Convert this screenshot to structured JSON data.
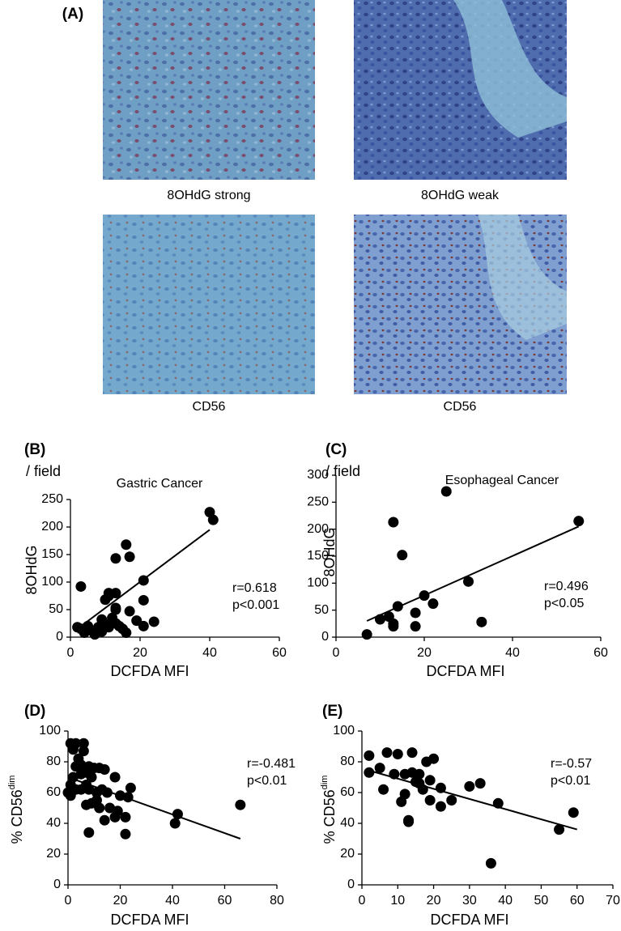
{
  "micrographs": {
    "panel_label": "(A)",
    "captions": [
      "8OHdG strong",
      "8OHdG weak",
      "CD56",
      "CD56"
    ]
  },
  "chart_data": [
    {
      "type": "scatter",
      "panel_label": "(B)",
      "title": "Gastric Cancer",
      "xlabel": "DCFDA MFI",
      "ylabel": "8OHdG",
      "ylabel_unit": "/ field",
      "annotations": [
        "r=0.618",
        "p<0.001"
      ],
      "xlim": [
        0,
        60
      ],
      "xticks": [
        0,
        20,
        40,
        60
      ],
      "ylim": [
        0,
        250
      ],
      "yticks": [
        0,
        50,
        100,
        150,
        200,
        250
      ],
      "color": "#000000",
      "x": [
        40,
        41,
        21,
        16,
        17,
        13,
        3,
        11,
        13,
        10,
        11,
        21,
        13,
        13,
        17,
        19,
        21,
        24,
        15,
        16,
        13,
        9,
        10,
        11,
        8,
        6,
        7,
        4,
        3,
        2,
        5,
        9,
        12,
        14
      ],
      "y": [
        227,
        213,
        103,
        168,
        146,
        143,
        92,
        80,
        80,
        68,
        75,
        67,
        53,
        50,
        47,
        30,
        20,
        28,
        15,
        8,
        25,
        32,
        23,
        18,
        18,
        12,
        5,
        8,
        15,
        18,
        20,
        10,
        35,
        20
      ],
      "fit": {
        "x": [
          2,
          40
        ],
        "y": [
          15,
          195
        ]
      }
    },
    {
      "type": "scatter",
      "panel_label": "(C)",
      "title": "Esophageal Cancer",
      "xlabel": "DCFDA MFI",
      "ylabel": "8OHdG",
      "ylabel_unit": "/ field",
      "annotations": [
        "r=0.496",
        "p<0.05"
      ],
      "xlim": [
        0,
        60
      ],
      "xticks": [
        0,
        20,
        40,
        60
      ],
      "ylim": [
        0,
        300
      ],
      "yticks": [
        0,
        50,
        100,
        150,
        200,
        250,
        300
      ],
      "color": "#000000",
      "x": [
        25,
        13,
        15,
        55,
        30,
        20,
        22,
        18,
        33,
        14,
        12,
        10,
        13,
        13,
        18,
        7
      ],
      "y": [
        270,
        213,
        152,
        215,
        103,
        77,
        62,
        45,
        28,
        57,
        38,
        33,
        25,
        20,
        20,
        5
      ],
      "fit": {
        "x": [
          7,
          55
        ],
        "y": [
          30,
          205
        ]
      }
    },
    {
      "type": "scatter",
      "panel_label": "(D)",
      "xlabel": "DCFDA MFI",
      "ylabel": "% CD56",
      "ylabel_sup": "dim",
      "annotations": [
        "r=-0.481",
        "p<0.01"
      ],
      "xlim": [
        0,
        80
      ],
      "xticks": [
        0,
        20,
        40,
        60,
        80
      ],
      "ylim": [
        0,
        100
      ],
      "yticks": [
        0,
        20,
        40,
        60,
        80,
        100
      ],
      "color": "#000000",
      "x": [
        1,
        3,
        6,
        2,
        6,
        4,
        3,
        5,
        8,
        10,
        12,
        14,
        2,
        5,
        7,
        9,
        1,
        3,
        5,
        7,
        8,
        11,
        13,
        15,
        18,
        20,
        24,
        23,
        9,
        7,
        12,
        16,
        19,
        22,
        11,
        14,
        18,
        8,
        22,
        41,
        42,
        66,
        0,
        1
      ],
      "y": [
        92,
        92,
        92,
        88,
        87,
        82,
        77,
        78,
        77,
        76,
        76,
        75,
        70,
        72,
        73,
        70,
        65,
        62,
        62,
        65,
        62,
        60,
        62,
        60,
        70,
        58,
        63,
        57,
        53,
        52,
        50,
        50,
        48,
        44,
        55,
        42,
        44,
        34,
        33,
        40,
        46,
        52,
        60,
        58
      ],
      "fit": {
        "x": [
          0,
          66
        ],
        "y": [
          70,
          30
        ]
      }
    },
    {
      "type": "scatter",
      "panel_label": "(E)",
      "xlabel": "DCFDA MFI",
      "ylabel": "% CD56",
      "ylabel_sup": "dim",
      "annotations": [
        "r=-0.57",
        "p<0.01"
      ],
      "xlim": [
        0,
        70
      ],
      "xticks": [
        0,
        10,
        20,
        30,
        40,
        50,
        60,
        70
      ],
      "ylim": [
        0,
        100
      ],
      "yticks": [
        0,
        20,
        40,
        60,
        80,
        100
      ],
      "color": "#000000",
      "x": [
        2,
        2,
        5,
        7,
        10,
        14,
        6,
        9,
        12,
        14,
        16,
        18,
        20,
        15,
        17,
        11,
        12,
        13,
        13,
        19,
        22,
        22,
        25,
        30,
        33,
        38,
        55,
        59,
        36,
        16,
        19
      ],
      "y": [
        84,
        73,
        76,
        86,
        85,
        86,
        62,
        72,
        72,
        73,
        72,
        80,
        82,
        67,
        62,
        54,
        59,
        42,
        41,
        55,
        63,
        51,
        55,
        64,
        66,
        53,
        36,
        47,
        14,
        66,
        68
      ],
      "fit": {
        "x": [
          1,
          60
        ],
        "y": [
          75,
          36
        ]
      }
    }
  ]
}
